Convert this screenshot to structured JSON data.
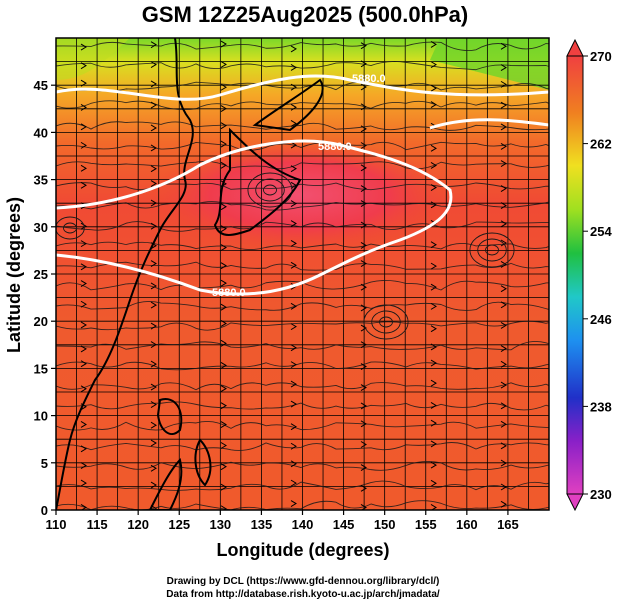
{
  "title": "GSM 12Z25Aug2025 (500.0hPa)",
  "xaxis": {
    "label": "Longitude (degrees)",
    "range": [
      110,
      170
    ],
    "ticks": [
      "110",
      "115",
      "120",
      "125",
      "130",
      "135",
      "140",
      "145",
      "150",
      "155",
      "160",
      "165"
    ]
  },
  "yaxis": {
    "label": "Latitude  (degrees)",
    "range": [
      0,
      50
    ],
    "ticks": [
      "0",
      "5",
      "10",
      "15",
      "20",
      "25",
      "30",
      "35",
      "40",
      "45"
    ]
  },
  "colorbar": {
    "range": [
      230,
      270
    ],
    "ticks": [
      "230",
      "238",
      "246",
      "254",
      "262",
      "270"
    ]
  },
  "contours": [
    {
      "label": "5880.0"
    },
    {
      "label": "5880.0"
    },
    {
      "label": "5880.0"
    }
  ],
  "credits": {
    "line1": "Drawing by DCL (https://www.gfd-dennou.org/library/dcl/)",
    "line2": "Data from http://database.rish.kyoto-u.ac.jp/arch/jmadata/"
  },
  "colors": {
    "warm_core": "#f0384a",
    "warm": "#f25a2c",
    "mid": "#f7a020",
    "cool": "#b8e020",
    "cold": "#46c81e",
    "contour": "#ffffff"
  }
}
